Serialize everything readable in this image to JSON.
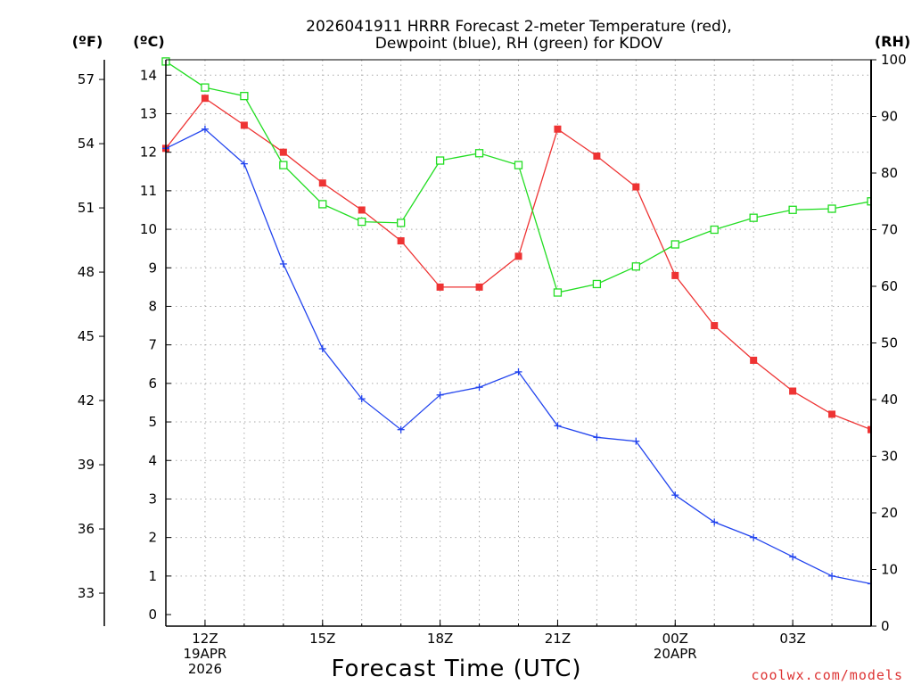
{
  "chart_data": {
    "type": "line",
    "title_line1": "2026041911 HRRR Forecast 2-meter Temperature (red),",
    "title_line2": "Dewpoint (blue), RH (green) for KDOV",
    "unit_f": "(ºF)",
    "unit_c": "(ºC)",
    "unit_rh": "(RH)",
    "xlabel": "Forecast Time (UTC)",
    "credit": "coolwx.com/models",
    "x_hours": [
      11,
      12,
      13,
      14,
      15,
      16,
      17,
      18,
      19,
      20,
      21,
      22,
      23,
      24,
      25,
      26,
      27,
      28,
      29
    ],
    "xlim": [
      11,
      29
    ],
    "x_ticks": [
      {
        "hour": 12,
        "lines": [
          "12Z",
          "19APR",
          "2026"
        ]
      },
      {
        "hour": 15,
        "lines": [
          "15Z"
        ]
      },
      {
        "hour": 18,
        "lines": [
          "18Z"
        ]
      },
      {
        "hour": 21,
        "lines": [
          "21Z"
        ]
      },
      {
        "hour": 24,
        "lines": [
          "00Z",
          "20APR"
        ]
      },
      {
        "hour": 27,
        "lines": [
          "03Z"
        ]
      }
    ],
    "c_axis": {
      "range": [
        -0.3,
        14.4
      ],
      "ticks": [
        "0",
        "1",
        "2",
        "3",
        "4",
        "5",
        "6",
        "7",
        "8",
        "9",
        "10",
        "11",
        "12",
        "13",
        "14"
      ]
    },
    "f_axis": {
      "ticks": [
        "33",
        "36",
        "39",
        "42",
        "45",
        "48",
        "51",
        "54",
        "57"
      ]
    },
    "rh_axis": {
      "range": [
        0,
        100
      ],
      "ticks": [
        "0",
        "10",
        "20",
        "30",
        "40",
        "50",
        "60",
        "70",
        "80",
        "90",
        "100"
      ]
    },
    "grid": true,
    "series": [
      {
        "name": "Temperature",
        "axis": "c",
        "color": "#ee3333",
        "marker": "filled-square",
        "values": [
          12.1,
          13.4,
          12.7,
          12.0,
          11.2,
          10.5,
          9.7,
          8.5,
          8.5,
          9.3,
          12.6,
          11.9,
          11.1,
          8.8,
          7.5,
          6.6,
          5.8,
          5.2,
          4.8
        ]
      },
      {
        "name": "Dewpoint",
        "axis": "c",
        "color": "#2244ee",
        "marker": "plus",
        "values": [
          12.1,
          12.6,
          11.7,
          9.1,
          6.9,
          5.6,
          4.8,
          5.7,
          5.9,
          6.3,
          4.9,
          4.6,
          4.5,
          3.1,
          2.4,
          2.0,
          1.5,
          1.0,
          0.8
        ]
      },
      {
        "name": "RH",
        "axis": "rh",
        "color": "#22dd22",
        "marker": "open-square",
        "values": [
          99.7,
          95.1,
          93.6,
          81.4,
          74.5,
          71.4,
          71.2,
          82.2,
          83.5,
          81.4,
          58.9,
          60.4,
          63.5,
          67.4,
          70.0,
          72.1,
          73.5,
          73.7,
          75.0
        ]
      }
    ]
  }
}
